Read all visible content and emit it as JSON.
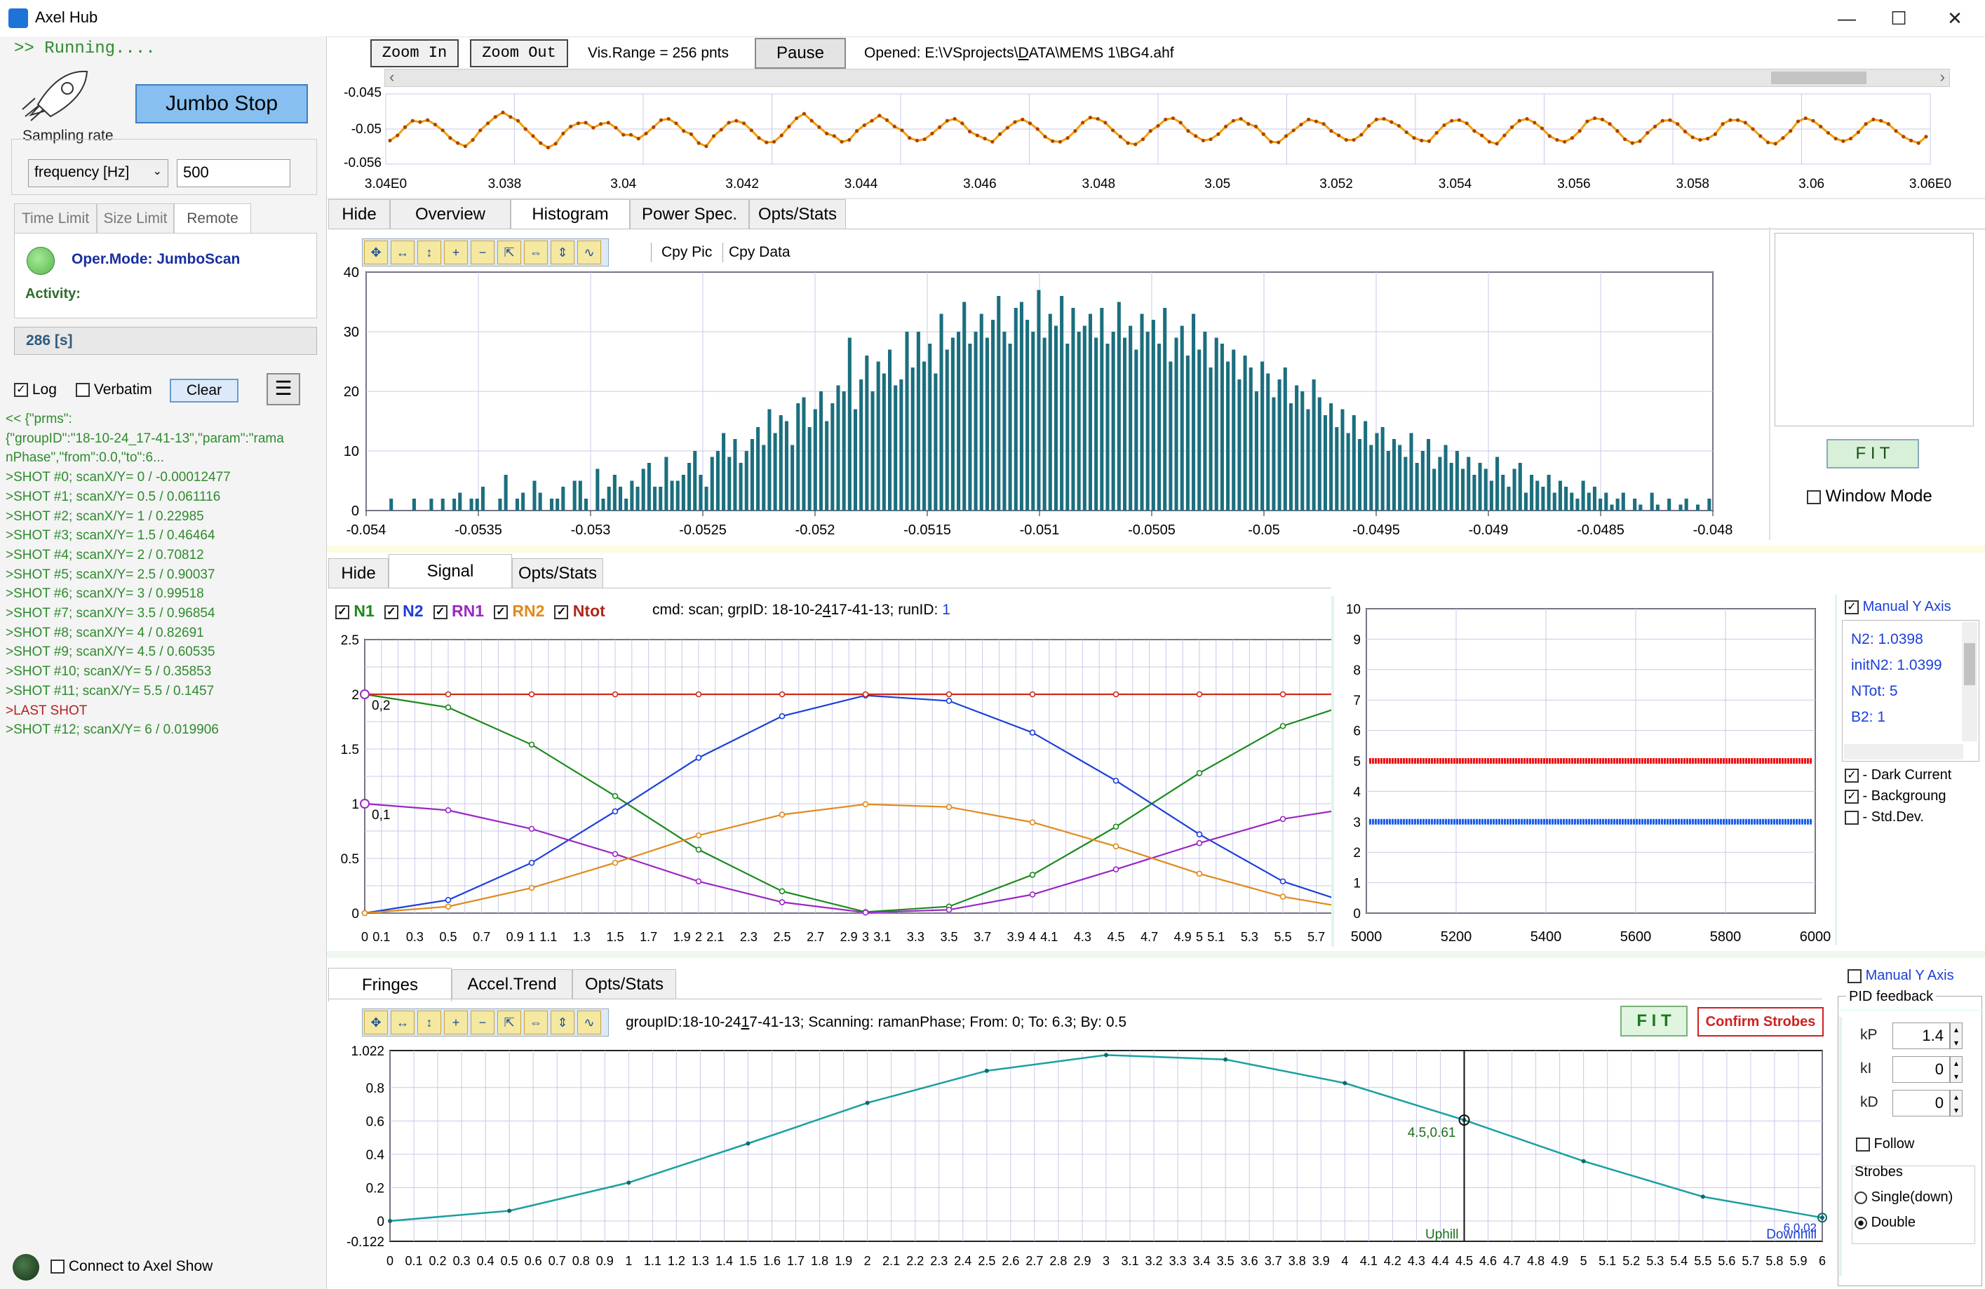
{
  "window": {
    "title": "Axel Hub",
    "minimize": "—",
    "maximize": "☐",
    "close": "✕"
  },
  "left": {
    "running": ">> Running....",
    "jumbo_stop": "Jumbo Stop",
    "sampling_rate_label": "Sampling rate",
    "sampling_mode": "frequency [Hz]",
    "sampling_value": "500",
    "tabs": [
      "Time Limit",
      "Size Limit",
      "Remote"
    ],
    "oper_mode": "Oper.Mode: JumboScan",
    "activity_label": "Activity:",
    "elapsed": "286 [s]",
    "log_label": "Log",
    "verbatim_label": "Verbatim",
    "clear_label": "Clear",
    "menu_icon": "hamburger-icon",
    "log_lines": [
      {
        "text": "<< {\"prms\":",
        "color": "#2e8b2e"
      },
      {
        "text": "{\"groupID\":\"18-10-24_17-41-13\",\"param\":\"rama",
        "color": "#2e8b2e"
      },
      {
        "text": "nPhase\",\"from\":0.0,\"to\":6...",
        "color": "#2e8b2e"
      },
      {
        "text": ">SHOT #0; scanX/Y= 0 / -0.00012477",
        "color": "#2e8b2e"
      },
      {
        "text": ">SHOT #1; scanX/Y= 0.5 / 0.061116",
        "color": "#2e8b2e"
      },
      {
        "text": ">SHOT #2; scanX/Y= 1 / 0.22985",
        "color": "#2e8b2e"
      },
      {
        "text": ">SHOT #3; scanX/Y= 1.5 / 0.46464",
        "color": "#2e8b2e"
      },
      {
        "text": ">SHOT #4; scanX/Y= 2 / 0.70812",
        "color": "#2e8b2e"
      },
      {
        "text": ">SHOT #5; scanX/Y= 2.5 / 0.90037",
        "color": "#2e8b2e"
      },
      {
        "text": ">SHOT #6; scanX/Y= 3 / 0.99518",
        "color": "#2e8b2e"
      },
      {
        "text": ">SHOT #7; scanX/Y= 3.5 / 0.96854",
        "color": "#2e8b2e"
      },
      {
        "text": ">SHOT #8; scanX/Y= 4 / 0.82691",
        "color": "#2e8b2e"
      },
      {
        "text": ">SHOT #9; scanX/Y= 4.5 / 0.60535",
        "color": "#2e8b2e"
      },
      {
        "text": ">SHOT #10; scanX/Y= 5 / 0.35853",
        "color": "#2e8b2e"
      },
      {
        "text": ">SHOT #11; scanX/Y= 5.5 / 0.1457",
        "color": "#2e8b2e"
      },
      {
        "text": ">LAST SHOT",
        "color": "#b22222"
      },
      {
        "text": ">SHOT #12; scanX/Y= 6 / 0.019906",
        "color": "#2e8b2e"
      }
    ],
    "connect_label": "Connect to Axel Show"
  },
  "toolbar": {
    "zoom_in": "Zoom In",
    "zoom_out": "Zoom Out",
    "vis_range": "Vis.Range = 256 pnts",
    "pause": "Pause",
    "opened_prefix": "Opened: E:\\VSprojects\\",
    "opened_accel": "D",
    "opened_suffix": "ATA\\MEMS 1\\BG4.ahf"
  },
  "strip": {
    "yticks": [
      "-0.045",
      "-0.05",
      "-0.056"
    ],
    "xticks": [
      "3.04E0",
      "3.038",
      "3.04",
      "3.042",
      "3.044",
      "3.046",
      "3.048",
      "3.05",
      "3.052",
      "3.054",
      "3.056",
      "3.058",
      "3.06",
      "3.06E0"
    ]
  },
  "hist_panel": {
    "tabs": [
      "Hide",
      "Overview",
      "Histogram",
      "Power Spec.",
      "Opts/Stats"
    ],
    "copy_pic": "Cpy Pic",
    "copy_data": "Cpy Data",
    "fit": "F I T",
    "window_mode": "Window Mode"
  },
  "signal_panel": {
    "tabs": [
      "Hide",
      "Signal",
      "Opts/Stats"
    ],
    "legend": [
      {
        "name": "N1",
        "color": "#1a8a1a"
      },
      {
        "name": "N2",
        "color": "#1a3fd8"
      },
      {
        "name": "RN1",
        "color": "#9b27c4"
      },
      {
        "name": "RN2",
        "color": "#e08a1a"
      },
      {
        "name": "Ntot",
        "color": "#b0281a"
      }
    ],
    "info_prefix": "cmd: scan;  grpID: 18-10-2",
    "info_accel": "4",
    "info_suffix": "17-41-13;  runID: ",
    "run_id": "1",
    "marker_a": "0,2",
    "marker_b": "0,1",
    "manual_y": "Manual Y Axis",
    "stats": [
      "N2: 1.0398",
      "initN2: 1.0399",
      "NTot: 5",
      "B2: 1"
    ],
    "options": [
      {
        "label": "- Dark Current",
        "checked": true
      },
      {
        "label": "- Backgroung",
        "checked": true
      },
      {
        "label": "- Std.Dev.",
        "checked": false
      }
    ]
  },
  "fringes_panel": {
    "tabs": [
      "Fringes",
      "Accel.Trend",
      "Opts/Stats"
    ],
    "info_prefix": "groupID:18-10-24",
    "info_accel": "1",
    "info_suffix": "7-41-13;  Scanning: ramanPhase;  From: 0;  To: 6.3;  By: 0.5",
    "fit": "F I T",
    "confirm": "Confirm Strobes",
    "cursor_label": "4.5,0.61",
    "uphill": "Uphill",
    "downhill": "Downhill",
    "end_label": "6,0.02",
    "manual_y": "Manual Y Axis",
    "pid_title": "PID feedback",
    "kp_label": "kP",
    "kp": "1.4",
    "ki_label": "kI",
    "ki": "0",
    "kd_label": "kD",
    "kd": "0",
    "follow": "Follow",
    "strobes_label": "Strobes",
    "single": "Single(down)",
    "double": "Double"
  },
  "chart_data": [
    {
      "type": "line",
      "name": "time-strip",
      "xlim": [
        3.036,
        3.06
      ],
      "ylim": [
        -0.056,
        -0.045
      ],
      "color": "#f0a000",
      "y": [
        -0.0523,
        -0.0515,
        -0.0502,
        -0.0492,
        -0.0494,
        -0.0491,
        -0.0498,
        -0.0507,
        -0.0519,
        -0.0527,
        -0.0532,
        -0.0522,
        -0.0507,
        -0.0496,
        -0.0486,
        -0.0479,
        -0.0486,
        -0.0492,
        -0.0505,
        -0.0516,
        -0.0527,
        -0.0534,
        -0.0528,
        -0.0512,
        -0.0501,
        -0.0496,
        -0.0495,
        -0.0503,
        -0.0497,
        -0.0495,
        -0.0503,
        -0.0514,
        -0.0514,
        -0.052,
        -0.0512,
        -0.0502,
        -0.0491,
        -0.0489,
        -0.0496,
        -0.0508,
        -0.0513,
        -0.0527,
        -0.0532,
        -0.0516,
        -0.0506,
        -0.0495,
        -0.0492,
        -0.0496,
        -0.0507,
        -0.0519,
        -0.0526,
        -0.0525,
        -0.0515,
        -0.0501,
        -0.0488,
        -0.0481,
        -0.0492,
        -0.0502,
        -0.0512,
        -0.0516,
        -0.0525,
        -0.0522,
        -0.0508,
        -0.0499,
        -0.0492,
        -0.0484,
        -0.0491,
        -0.0501,
        -0.0507,
        -0.0519,
        -0.0523,
        -0.0521,
        -0.0512,
        -0.0502,
        -0.0492,
        -0.0489,
        -0.0496,
        -0.0509,
        -0.0515,
        -0.052,
        -0.0525,
        -0.0513,
        -0.0503,
        -0.0494,
        -0.049,
        -0.0496,
        -0.0505,
        -0.0517,
        -0.0524,
        -0.0525,
        -0.0519,
        -0.0508,
        -0.0495,
        -0.0487,
        -0.0489,
        -0.0495,
        -0.0507,
        -0.0517,
        -0.0527,
        -0.0529,
        -0.0521,
        -0.0508,
        -0.05,
        -0.049,
        -0.0488,
        -0.0495,
        -0.0508,
        -0.0516,
        -0.0523,
        -0.0521,
        -0.0513,
        -0.0501,
        -0.0492,
        -0.0489,
        -0.0497,
        -0.0501,
        -0.0513,
        -0.0525,
        -0.0526,
        -0.0516,
        -0.0507,
        -0.0498,
        -0.049,
        -0.0493,
        -0.0497,
        -0.0508,
        -0.0515,
        -0.0522,
        -0.0522,
        -0.0514,
        -0.05,
        -0.049,
        -0.0489,
        -0.0494,
        -0.05,
        -0.051,
        -0.0519,
        -0.0523,
        -0.0524,
        -0.0511,
        -0.0499,
        -0.0492,
        -0.0491,
        -0.0496,
        -0.0508,
        -0.0515,
        -0.0525,
        -0.0528,
        -0.0515,
        -0.0502,
        -0.0492,
        -0.0489,
        -0.0495,
        -0.0504,
        -0.0516,
        -0.0522,
        -0.0525,
        -0.0519,
        -0.0508,
        -0.0493,
        -0.0488,
        -0.049,
        -0.0497,
        -0.0508,
        -0.0521,
        -0.0527,
        -0.0524,
        -0.0511,
        -0.0501,
        -0.0492,
        -0.0491,
        -0.0497,
        -0.0509,
        -0.0518,
        -0.0522,
        -0.052,
        -0.0513,
        -0.0497,
        -0.0491,
        -0.0491,
        -0.0495,
        -0.0505,
        -0.0516,
        -0.0526,
        -0.0528,
        -0.0519,
        -0.0508,
        -0.0493,
        -0.0488,
        -0.0492,
        -0.0501,
        -0.0511,
        -0.052,
        -0.0524,
        -0.052,
        -0.051,
        -0.0497,
        -0.049,
        -0.0492,
        -0.0497,
        -0.0508,
        -0.0517,
        -0.0523,
        -0.0527,
        -0.0517
      ]
    },
    {
      "type": "bar",
      "name": "histogram",
      "xlim": [
        -0.054,
        -0.048
      ],
      "ylim": [
        0,
        40
      ],
      "xticks": [
        "-0.054",
        "-0.0535",
        "-0.053",
        "-0.0525",
        "-0.052",
        "-0.0515",
        "-0.051",
        "-0.0505",
        "-0.05",
        "-0.0495",
        "-0.049",
        "-0.0485",
        "-0.048"
      ],
      "yticks": [
        "0",
        "10",
        "20",
        "30",
        "40"
      ],
      "color": "#1b6f7e",
      "values": [
        0,
        0,
        0,
        0,
        2,
        0,
        0,
        0,
        2,
        0,
        0,
        2,
        0,
        2,
        0,
        2,
        3,
        0,
        2,
        2,
        4,
        0,
        0,
        2,
        6,
        0,
        2,
        3,
        0,
        5,
        3,
        0,
        2,
        2,
        4,
        0,
        5,
        5,
        2,
        0,
        7,
        2,
        4,
        6,
        4,
        2,
        5,
        4,
        7,
        8,
        4,
        4,
        9,
        5,
        5,
        6,
        8,
        10,
        6,
        4,
        9,
        10,
        13,
        9,
        12,
        8,
        10,
        12,
        14,
        11,
        17,
        13,
        16,
        15,
        11,
        18,
        19,
        14,
        17,
        20,
        15,
        18,
        21,
        20,
        29,
        17,
        22,
        26,
        20,
        25,
        23,
        27,
        21,
        22,
        30,
        24,
        30,
        25,
        28,
        23,
        33,
        27,
        29,
        30,
        35,
        28,
        30,
        33,
        29,
        32,
        36,
        30,
        28,
        34,
        35,
        32,
        30,
        37,
        29,
        33,
        31,
        36,
        28,
        34,
        30,
        31,
        33,
        29,
        34,
        28,
        30,
        35,
        29,
        31,
        27,
        33,
        30,
        32,
        28,
        34,
        25,
        29,
        31,
        26,
        33,
        27,
        30,
        24,
        29,
        28,
        25,
        27,
        22,
        26,
        24,
        20,
        25,
        23,
        19,
        22,
        24,
        18,
        21,
        20,
        17,
        22,
        19,
        16,
        18,
        14,
        17,
        13,
        16,
        12,
        15,
        11,
        13,
        14,
        10,
        12,
        11,
        9,
        13,
        8,
        10,
        12,
        7,
        9,
        11,
        8,
        10,
        7,
        9,
        6,
        8,
        7,
        5,
        9,
        6,
        4,
        7,
        8,
        3,
        6,
        5,
        4,
        6,
        3,
        5,
        4,
        3,
        2,
        5,
        3,
        4,
        2,
        3,
        1,
        2,
        3,
        0,
        2,
        1,
        0,
        3,
        1,
        0,
        2,
        0,
        1,
        2,
        0,
        1,
        0,
        2
      ]
    },
    {
      "type": "line",
      "name": "signal",
      "xlim": [
        0,
        6
      ],
      "ylim": [
        0,
        2.5
      ],
      "xticks": [
        "0",
        "0.1",
        "0.3",
        "0.5",
        "0.7",
        "0.9",
        "1",
        "1.1",
        "1.3",
        "1.5",
        "1.7",
        "1.9",
        "2",
        "2.1",
        "2.3",
        "2.5",
        "2.7",
        "2.9",
        "3",
        "3.1",
        "3.3",
        "3.5",
        "3.7",
        "3.9",
        "4",
        "4.1",
        "4.3",
        "4.5",
        "4.7",
        "4.9",
        "5",
        "5.1",
        "5.3",
        "5.5",
        "5.7",
        "5.9",
        "6"
      ],
      "yticks": [
        "0",
        "0.5",
        "1",
        "1.5",
        "2",
        "2.5"
      ],
      "x": [
        0,
        0.5,
        1,
        1.5,
        2,
        2.5,
        3,
        3.5,
        4,
        4.5,
        5,
        5.5,
        6
      ],
      "series": [
        {
          "name": "N1",
          "color": "#1a8a1a",
          "values": [
            2,
            1.88,
            1.54,
            1.07,
            0.58,
            0.2,
            0.01,
            0.06,
            0.35,
            0.79,
            1.28,
            1.71,
            1.96
          ]
        },
        {
          "name": "N2",
          "color": "#1a3fd8",
          "values": [
            0,
            0.12,
            0.46,
            0.93,
            1.42,
            1.8,
            1.99,
            1.94,
            1.65,
            1.21,
            0.72,
            0.29,
            0.04
          ]
        },
        {
          "name": "RN1",
          "color": "#9b27c4",
          "values": [
            1,
            0.94,
            0.77,
            0.54,
            0.29,
            0.1,
            0.005,
            0.03,
            0.17,
            0.4,
            0.64,
            0.86,
            0.98
          ]
        },
        {
          "name": "RN2",
          "color": "#e08a1a",
          "values": [
            0,
            0.06,
            0.23,
            0.46,
            0.71,
            0.9,
            0.995,
            0.97,
            0.83,
            0.61,
            0.36,
            0.15,
            0.02
          ]
        },
        {
          "name": "Ntot",
          "color": "#d02a1a",
          "values": [
            2,
            2,
            2,
            2,
            2,
            2,
            2,
            2,
            2,
            2,
            2,
            2,
            2
          ]
        }
      ]
    },
    {
      "type": "line",
      "name": "background",
      "xlim": [
        5000,
        6000
      ],
      "ylim": [
        0,
        10
      ],
      "xticks": [
        "5000",
        "5200",
        "5400",
        "5600",
        "5800",
        "6000"
      ],
      "yticks": [
        "0",
        "1",
        "2",
        "3",
        "4",
        "5",
        "6",
        "7",
        "8",
        "9",
        "10"
      ],
      "series": [
        {
          "color": "#f01010",
          "level": 5
        },
        {
          "color": "#1a5fe8",
          "level": 3
        }
      ]
    },
    {
      "type": "line",
      "name": "fringes",
      "xlim": [
        0,
        6
      ],
      "ylim": [
        -0.122,
        1.022
      ],
      "yticks": [
        "1.022",
        "0.8",
        "0.6",
        "0.4",
        "0.2",
        "0",
        "-0.122"
      ],
      "color": "#19a0a0",
      "x": [
        0,
        0.5,
        1,
        1.5,
        2,
        2.5,
        3,
        3.5,
        4,
        4.5,
        5,
        5.5,
        6
      ],
      "values": [
        -0.00012477,
        0.061116,
        0.22985,
        0.46464,
        0.70812,
        0.90037,
        0.99518,
        0.96854,
        0.82691,
        0.60535,
        0.35853,
        0.1457,
        0.019906
      ],
      "cursor_x": 4.5
    }
  ]
}
